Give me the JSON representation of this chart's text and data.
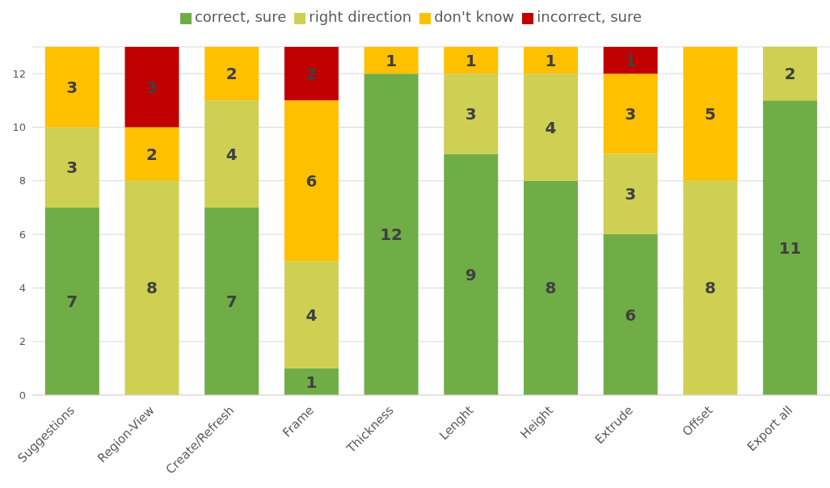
{
  "chart_data": {
    "type": "bar",
    "stacked": true,
    "categories": [
      "Suggestions",
      "Region-View",
      "Create/Refresh",
      "Frame",
      "Thickness",
      "Lenght",
      "Height",
      "Extrude",
      "Offset",
      "Export all"
    ],
    "series": [
      {
        "name": "correct, sure",
        "color": "#70ad47",
        "values": [
          7,
          null,
          7,
          1,
          12,
          9,
          8,
          6,
          null,
          11
        ]
      },
      {
        "name": "right direction",
        "color": "#cdd052",
        "values": [
          3,
          8,
          4,
          4,
          null,
          3,
          4,
          3,
          8,
          2
        ]
      },
      {
        "name": "don't know",
        "color": "#ffc000",
        "values": [
          3,
          2,
          2,
          6,
          1,
          1,
          1,
          3,
          5,
          null
        ]
      },
      {
        "name": "incorrect, sure",
        "color": "#c00000",
        "values": [
          null,
          3,
          null,
          2,
          null,
          null,
          null,
          1,
          null,
          null
        ]
      }
    ],
    "ylim": [
      0,
      13
    ],
    "yticks": [
      0,
      2,
      4,
      6,
      8,
      10,
      12
    ],
    "grid": "y",
    "legend": "top",
    "data_labels": true
  }
}
